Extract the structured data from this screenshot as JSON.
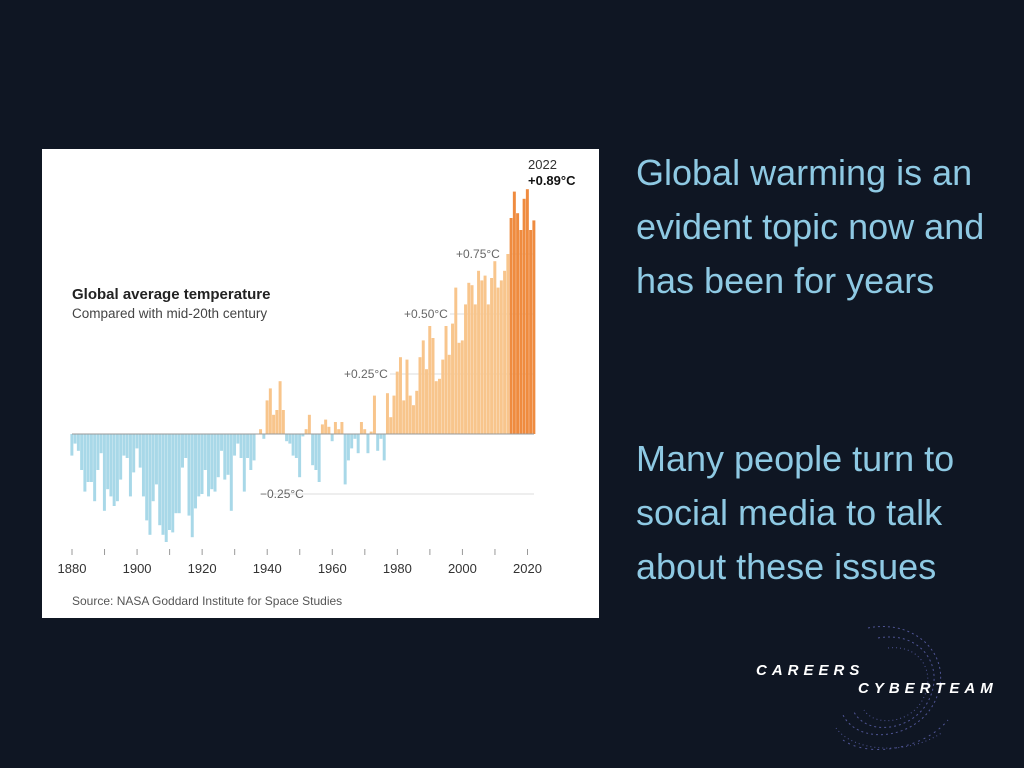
{
  "slide": {
    "paragraph_1": "Global warming is an evident topic now and has been for years",
    "paragraph_2": "Many people turn to social media to talk about these issues"
  },
  "logo": {
    "line_1": "CAREERS",
    "line_2": "CYBERTEAM"
  },
  "colors": {
    "background": "#0f1623",
    "text": "#8ec9e3",
    "negative_bar": "#a8d8e8",
    "positive_bar": "#f8c58c",
    "recent_bar": "#ef8b3f"
  },
  "chart_data": {
    "type": "bar",
    "title": "Global average temperature",
    "subtitle": "Compared with mid-20th century",
    "source": "Source: NASA Goddard Institute for Space Studies",
    "x_ticks": [
      1880,
      1900,
      1920,
      1940,
      1960,
      1980,
      2000,
      2020
    ],
    "x_tick_labels": [
      "1880",
      "1900",
      "1920",
      "1940",
      "1960",
      "1980",
      "2000",
      "2020"
    ],
    "reference_lines": [
      {
        "value": 0.75,
        "label": "+0.75°C"
      },
      {
        "value": 0.5,
        "label": "+0.50°C"
      },
      {
        "value": 0.25,
        "label": "+0.25°C"
      },
      {
        "value": -0.25,
        "label": "−0.25°C"
      }
    ],
    "latest": {
      "year": "2022",
      "value": "+0.89°C"
    },
    "xlim": [
      1880,
      2022
    ],
    "ylim": [
      -0.48,
      1.08
    ],
    "unit": "°C",
    "years": [
      1880,
      1881,
      1882,
      1883,
      1884,
      1885,
      1886,
      1887,
      1888,
      1889,
      1890,
      1891,
      1892,
      1893,
      1894,
      1895,
      1896,
      1897,
      1898,
      1899,
      1900,
      1901,
      1902,
      1903,
      1904,
      1905,
      1906,
      1907,
      1908,
      1909,
      1910,
      1911,
      1912,
      1913,
      1914,
      1915,
      1916,
      1917,
      1918,
      1919,
      1920,
      1921,
      1922,
      1923,
      1924,
      1925,
      1926,
      1927,
      1928,
      1929,
      1930,
      1931,
      1932,
      1933,
      1934,
      1935,
      1936,
      1937,
      1938,
      1939,
      1940,
      1941,
      1942,
      1943,
      1944,
      1945,
      1946,
      1947,
      1948,
      1949,
      1950,
      1951,
      1952,
      1953,
      1954,
      1955,
      1956,
      1957,
      1958,
      1959,
      1960,
      1961,
      1962,
      1963,
      1964,
      1965,
      1966,
      1967,
      1968,
      1969,
      1970,
      1971,
      1972,
      1973,
      1974,
      1975,
      1976,
      1977,
      1978,
      1979,
      1980,
      1981,
      1982,
      1983,
      1984,
      1985,
      1986,
      1987,
      1988,
      1989,
      1990,
      1991,
      1992,
      1993,
      1994,
      1995,
      1996,
      1997,
      1998,
      1999,
      2000,
      2001,
      2002,
      2003,
      2004,
      2005,
      2006,
      2007,
      2008,
      2009,
      2010,
      2011,
      2012,
      2013,
      2014,
      2015,
      2016,
      2017,
      2018,
      2019,
      2020,
      2021,
      2022
    ],
    "values": [
      -0.09,
      -0.04,
      -0.07,
      -0.15,
      -0.24,
      -0.2,
      -0.2,
      -0.28,
      -0.15,
      -0.08,
      -0.32,
      -0.23,
      -0.26,
      -0.3,
      -0.28,
      -0.19,
      -0.09,
      -0.1,
      -0.26,
      -0.16,
      -0.06,
      -0.14,
      -0.26,
      -0.36,
      -0.42,
      -0.28,
      -0.21,
      -0.38,
      -0.42,
      -0.45,
      -0.4,
      -0.41,
      -0.33,
      -0.33,
      -0.14,
      -0.1,
      -0.34,
      -0.43,
      -0.31,
      -0.26,
      -0.25,
      -0.15,
      -0.26,
      -0.23,
      -0.24,
      -0.18,
      -0.07,
      -0.19,
      -0.17,
      -0.32,
      -0.09,
      -0.04,
      -0.1,
      -0.24,
      -0.1,
      -0.15,
      -0.11,
      0.0,
      0.02,
      -0.02,
      0.14,
      0.19,
      0.08,
      0.1,
      0.22,
      0.1,
      -0.03,
      -0.04,
      -0.09,
      -0.1,
      -0.18,
      -0.01,
      0.02,
      0.08,
      -0.13,
      -0.15,
      -0.2,
      0.04,
      0.06,
      0.03,
      -0.03,
      0.05,
      0.02,
      0.05,
      -0.21,
      -0.11,
      -0.06,
      -0.02,
      -0.08,
      0.05,
      0.02,
      -0.08,
      0.01,
      0.16,
      -0.07,
      -0.02,
      -0.11,
      0.17,
      0.07,
      0.16,
      0.26,
      0.32,
      0.14,
      0.31,
      0.16,
      0.12,
      0.18,
      0.32,
      0.39,
      0.27,
      0.45,
      0.4,
      0.22,
      0.23,
      0.31,
      0.45,
      0.33,
      0.46,
      0.61,
      0.38,
      0.39,
      0.54,
      0.63,
      0.62,
      0.54,
      0.68,
      0.64,
      0.66,
      0.54,
      0.65,
      0.72,
      0.61,
      0.64,
      0.68,
      0.75,
      0.9,
      1.01,
      0.92,
      0.85,
      0.98,
      1.02,
      0.85,
      0.89
    ]
  }
}
